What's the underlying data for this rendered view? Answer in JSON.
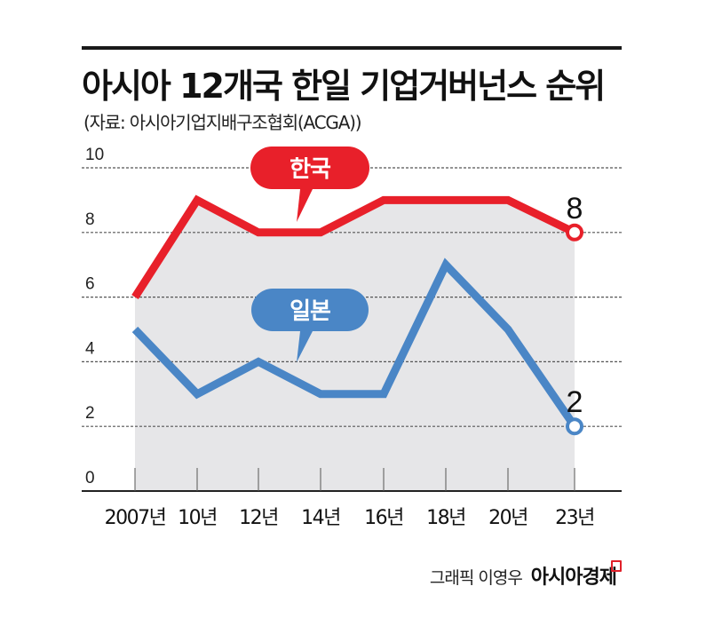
{
  "header": {
    "title": "아시아 12개국 한일 기업거버넌스 순위",
    "subtitle": "(자료: 아시아기업지배구조협회(ACGA))"
  },
  "footer": {
    "credit": "그래픽 이영우",
    "brand": "아시아경제"
  },
  "colors": {
    "korea": "#e8202a",
    "japan": "#4a86c6",
    "fill": "#e6e6e8",
    "grid": "#555555"
  },
  "chart_data": {
    "type": "line",
    "title": "아시아 12개국 한일 기업거버넌스 순위",
    "subtitle": "(자료: 아시아기업지배구조협회(ACGA))",
    "xlabel": "",
    "ylabel": "",
    "categories": [
      "2007년",
      "10년",
      "12년",
      "14년",
      "16년",
      "18년",
      "20년",
      "23년"
    ],
    "yticks": [
      "0",
      "2",
      "4",
      "6",
      "8",
      "10"
    ],
    "ylim": [
      0,
      10
    ],
    "grid": true,
    "series": [
      {
        "name": "한국",
        "values": [
          6,
          9,
          8,
          8,
          9,
          9,
          9,
          8
        ],
        "color": "#e8202a",
        "end_label": "8"
      },
      {
        "name": "일본",
        "values": [
          5,
          3,
          4,
          3,
          3,
          7,
          5,
          2
        ],
        "color": "#4a86c6",
        "end_label": "2"
      }
    ],
    "annotations": [
      {
        "text": "한국",
        "type": "callout",
        "series": "한국"
      },
      {
        "text": "일본",
        "type": "callout",
        "series": "일본"
      }
    ]
  }
}
